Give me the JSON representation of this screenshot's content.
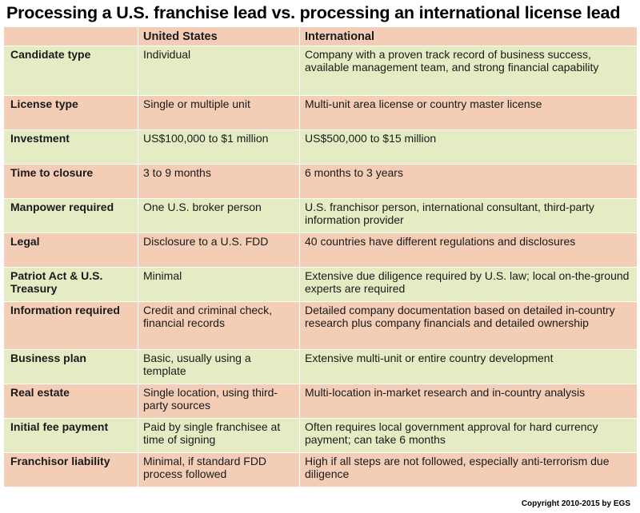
{
  "title": "Processing a U.S. franchise lead vs. processing an international license lead",
  "table": {
    "headers": [
      "",
      "United States",
      "International"
    ],
    "rows": [
      {
        "label": "Candidate type",
        "us": "Individual",
        "intl": "Company with a proven track record of business success, available management team, and strong financial capability"
      },
      {
        "label": "License type",
        "us": "Single or multiple unit",
        "intl": "Multi-unit area license or country master license"
      },
      {
        "label": "Investment",
        "us": "US$100,000 to $1 million",
        "intl": "US$500,000 to $15 million"
      },
      {
        "label": "Time to closure",
        "us": "3 to 9 months",
        "intl": "6 months to 3 years"
      },
      {
        "label": "Manpower required",
        "us": "One U.S. broker person",
        "intl": "U.S. franchisor person, international consultant, third-party information provider"
      },
      {
        "label": "Legal",
        "us": "Disclosure to a U.S. FDD",
        "intl": "40 countries have different regulations and disclosures"
      },
      {
        "label": "Patriot Act & U.S. Treasury",
        "us": "Minimal",
        "intl": "Extensive due diligence required by U.S. law; local on-the-ground experts are required"
      },
      {
        "label": "Information required",
        "us": "Credit and criminal check, financial records",
        "intl": "Detailed company documentation based on detailed in-country research plus company financials and detailed ownership"
      },
      {
        "label": "Business plan",
        "us": "Basic, usually using a template",
        "intl": "Extensive multi-unit or entire country development"
      },
      {
        "label": "Real estate",
        "us": "Single location, using third-party sources",
        "intl": "Multi-location in-market research and in-country analysis"
      },
      {
        "label": "Initial fee payment",
        "us": "Paid by single franchisee at time of signing",
        "intl": "Often requires local government approval for hard currency payment; can take 6 months"
      },
      {
        "label": "Franchisor liability",
        "us": "Minimal, if standard FDD process followed",
        "intl": "High if all steps are not followed, especially anti-terrorism due diligence"
      }
    ]
  },
  "copyright": "Copyright 2010-2015 by EGS",
  "colors": {
    "peach_row": "#f3cdb6",
    "green_row": "#e5ecc4"
  }
}
